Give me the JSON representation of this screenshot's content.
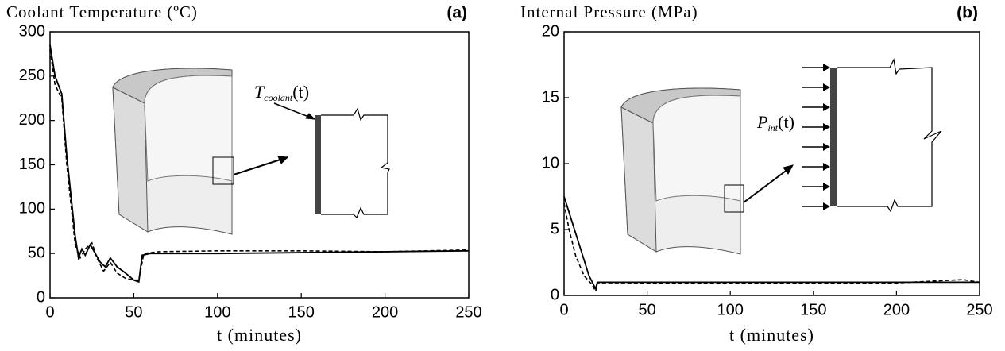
{
  "chart_data": [
    {
      "type": "line",
      "title": "Coolant Temperature (ºC)",
      "panel_label": "(a)",
      "x_label": "t (minutes)",
      "annotation": {
        "symbol": "T",
        "subscript": "coolant",
        "argument": "(t)"
      },
      "xlim": [
        0,
        250
      ],
      "xticks": [
        0,
        50,
        100,
        150,
        200,
        250
      ],
      "ylim": [
        0,
        300
      ],
      "yticks": [
        0,
        50,
        100,
        150,
        200,
        250,
        300
      ],
      "series": [
        {
          "color": "#000000",
          "dash": false,
          "x": [
            0,
            3,
            7,
            10,
            15,
            17,
            19,
            21,
            24,
            27,
            30,
            33,
            36,
            40,
            45,
            50,
            53,
            55,
            60,
            100,
            150,
            200,
            250
          ],
          "values": [
            285,
            250,
            230,
            160,
            70,
            45,
            55,
            48,
            60,
            50,
            40,
            35,
            45,
            35,
            28,
            20,
            18,
            48,
            50,
            50,
            51,
            52,
            53
          ]
        },
        {
          "color": "#000000",
          "dash": true,
          "x": [
            0,
            3,
            7,
            10,
            15,
            18,
            21,
            25,
            28,
            32,
            36,
            40,
            45,
            50,
            53,
            56,
            65,
            100,
            150,
            200,
            250
          ],
          "values": [
            280,
            240,
            225,
            150,
            60,
            45,
            55,
            62,
            45,
            30,
            40,
            28,
            22,
            20,
            20,
            50,
            52,
            53,
            53,
            52,
            54
          ]
        }
      ]
    },
    {
      "type": "line",
      "title": "Internal Pressure (MPa)",
      "panel_label": "(b)",
      "x_label": "t (minutes)",
      "annotation": {
        "symbol": "P",
        "subscript": "int",
        "argument": "(t)"
      },
      "xlim": [
        0,
        250
      ],
      "xticks": [
        0,
        50,
        100,
        150,
        200,
        250
      ],
      "ylim": [
        0,
        20
      ],
      "yticks": [
        0,
        5,
        10,
        15,
        20
      ],
      "series": [
        {
          "color": "#000000",
          "dash": false,
          "x": [
            0,
            5,
            10,
            15,
            19,
            20,
            50,
            100,
            150,
            200,
            250
          ],
          "values": [
            7.5,
            5.5,
            3.5,
            1.5,
            0.5,
            1.0,
            1.0,
            1.0,
            1.0,
            1.0,
            1.0
          ]
        },
        {
          "color": "#000000",
          "dash": true,
          "x": [
            0,
            3,
            7,
            12,
            17,
            19,
            20,
            30,
            100,
            200,
            240,
            250
          ],
          "values": [
            7,
            5,
            3,
            1.5,
            0.8,
            0.3,
            0.9,
            0.9,
            0.95,
            0.95,
            1.2,
            1.0
          ]
        }
      ]
    }
  ]
}
